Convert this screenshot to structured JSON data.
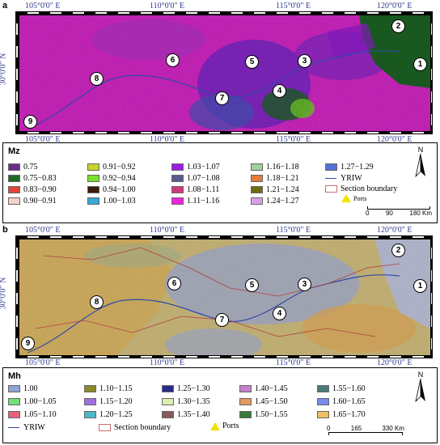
{
  "panel_a": {
    "letter": "a",
    "coords_top": [
      "105°0'0\" E",
      "110°0'0\" E",
      "115°0'0\" E",
      "120°0'0\" E"
    ],
    "coords_bottom": [
      "105°0'0\" E",
      "110°0'0\" E",
      "115°0'0\" E",
      "120°0'0\" E"
    ],
    "lat_label": "30°0'0\" N",
    "sites": [
      "1",
      "2",
      "3",
      "4",
      "5",
      "6",
      "7",
      "8",
      "9"
    ],
    "legend": {
      "title": "Mz",
      "items": [
        {
          "label": "0.75",
          "color": "#6a2d8c"
        },
        {
          "label": "0.91−0.92",
          "color": "#c8d42a"
        },
        {
          "label": "1.03−1.07",
          "color": "#9b1de0"
        },
        {
          "label": "1.16−1.18",
          "color": "#9fd19a"
        },
        {
          "label": "1.27−1.29",
          "color": "#4f73d9"
        },
        {
          "label": "0.75−0.83",
          "color": "#1e6b27"
        },
        {
          "label": "0.92−0.94",
          "color": "#79e02a"
        },
        {
          "label": "1.07−1.08",
          "color": "#595a8f"
        },
        {
          "label": "1.18−1.21",
          "color": "#e57a3a"
        },
        {
          "label": "YRIW",
          "color": "#2f4aa8"
        },
        {
          "label": "0.83−0.90",
          "color": "#e0473a"
        },
        {
          "label": "0.94−1.00",
          "color": "#3a1c0e"
        },
        {
          "label": "1.08−1.11",
          "color": "#cf3b7c"
        },
        {
          "label": "1.21−1.24",
          "color": "#6e6b12"
        },
        {
          "label": "Section boundary",
          "color": "#c97070"
        },
        {
          "label": "0.90−0.91",
          "color": "#f2d2cc"
        },
        {
          "label": "1.00−1.03",
          "color": "#33aad9"
        },
        {
          "label": "1.11−1.16",
          "color": "#ee22e0"
        },
        {
          "label": "1.24−1.27",
          "color": "#d9a0e8"
        },
        {
          "label": "Ports",
          "color": "#f1e200"
        }
      ],
      "north": "N",
      "scale_labels": [
        "0",
        "90",
        "180 Km"
      ]
    }
  },
  "panel_b": {
    "letter": "b",
    "coords_top": [
      "105°0'0\" E",
      "110°0'0\" E",
      "115°0'0\" E",
      "120°0'0\" E"
    ],
    "coords_bottom": [
      "105°0'0\" E",
      "110°0'0\" E",
      "115°0'0\" E",
      "120°0'0\" E"
    ],
    "lat_label": "30°0'0\" N",
    "sites": [
      "1",
      "2",
      "3",
      "4",
      "5",
      "6",
      "7",
      "8",
      "9"
    ],
    "legend": {
      "title": "Mh",
      "items": [
        {
          "label": "1.00",
          "color": "#8fa3d6"
        },
        {
          "label": "1.10−1.15",
          "color": "#8a8a2a"
        },
        {
          "label": "1.25−1.30",
          "color": "#2a2a8a"
        },
        {
          "label": "1.40−1.45",
          "color": "#c67ec9"
        },
        {
          "label": "1.55−1.60",
          "color": "#4a7a7a"
        },
        {
          "label": "1.00−1.05",
          "color": "#6fe07a"
        },
        {
          "label": "1.15−1.20",
          "color": "#a070e0"
        },
        {
          "label": "1.30−1.35",
          "color": "#d8f0b0"
        },
        {
          "label": "1.45−1.50",
          "color": "#e09a60"
        },
        {
          "label": "1.60−1.65",
          "color": "#7a8af0"
        },
        {
          "label": "1.05−1.10",
          "color": "#e8607a"
        },
        {
          "label": "1.20−1.25",
          "color": "#4ab8c8"
        },
        {
          "label": "1.35−1.40",
          "color": "#8a5a5a"
        },
        {
          "label": "1.50−1.55",
          "color": "#3a7a3a"
        },
        {
          "label": "1.65−1.70",
          "color": "#f0c060"
        },
        {
          "label": "YRIW",
          "color": "#2f4aa8"
        },
        {
          "label": "Section boundary",
          "color": "#c97070"
        },
        {
          "label": "Ports",
          "color": "#f1e200"
        }
      ],
      "north": "N",
      "scale_labels": [
        "0",
        "165",
        "330 Km"
      ]
    }
  }
}
